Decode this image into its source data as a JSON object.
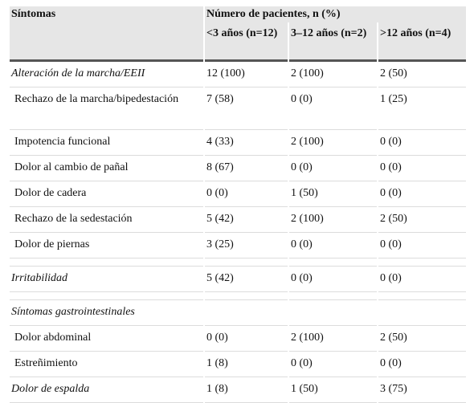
{
  "header": {
    "title": "Síntomas",
    "group": "Número de pacientes, n (%)",
    "columns": [
      "<3 años (n=12)",
      "3–12 años (n=2)",
      ">12 años (n=4)"
    ]
  },
  "table": {
    "rows": [
      [
        "Alteración de la marcha/EEII",
        "12 (100)",
        "2 (100)",
        "2 (50)"
      ],
      [
        "Rechazo de la marcha/bipedestación",
        "7 (58)",
        "0 (0)",
        "1 (25)"
      ],
      [
        "Impotencia funcional",
        "4 (33)",
        "2 (100)",
        "0 (0)"
      ],
      [
        "Dolor al cambio de pañal",
        "8 (67)",
        "0 (0)",
        "0 (0)"
      ],
      [
        "Dolor de cadera",
        "0 (0)",
        "1 (50)",
        "0 (0)"
      ],
      [
        "Rechazo de la sedestación",
        "5 (42)",
        "2 (100)",
        "2 (50)"
      ],
      [
        "Dolor de piernas",
        "3 (25)",
        "0 (0)",
        "0 (0)"
      ],
      [
        "Irritabilidad",
        "5 (42)",
        "0 (0)",
        "0 (0)"
      ],
      [
        "Síntomas gastrointestinales"
      ],
      [
        "Dolor abdominal",
        "0 (0)",
        "2 (100)",
        "2 (50)"
      ],
      [
        "Estreñimiento",
        "1 (8)",
        "0 (0)",
        "0 (0)"
      ],
      [
        "Dolor de espalda",
        "1 (8)",
        "1 (50)",
        "3 (75)"
      ]
    ]
  }
}
